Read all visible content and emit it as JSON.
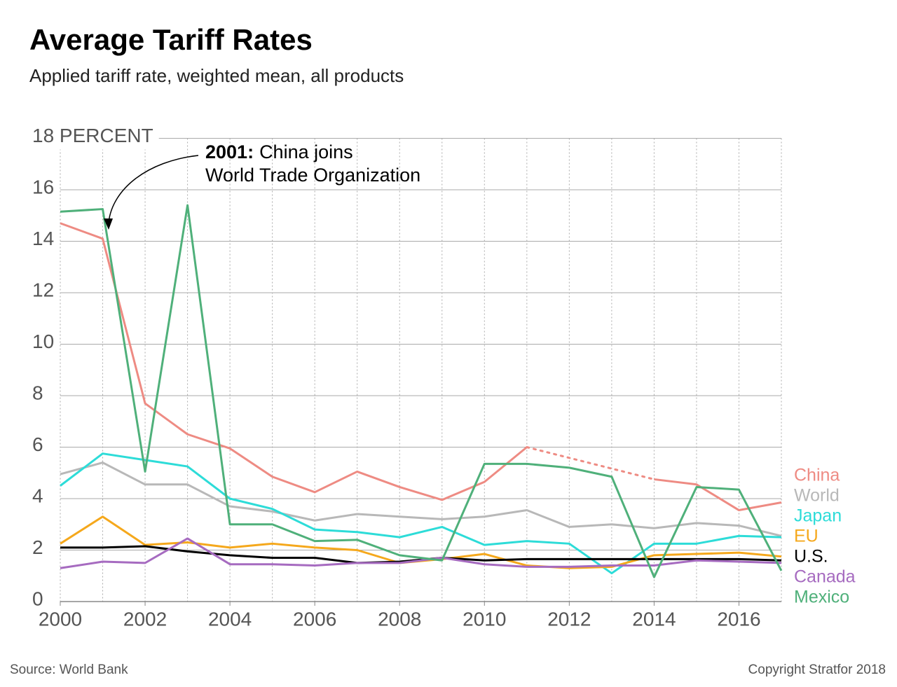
{
  "chart_data": {
    "type": "line",
    "title": "Average Tariff Rates",
    "subtitle": "Applied tariff rate, weighted mean, all products",
    "x": [
      2000,
      2001,
      2002,
      2003,
      2004,
      2005,
      2006,
      2007,
      2008,
      2009,
      2010,
      2011,
      2012,
      2013,
      2014,
      2015,
      2016,
      2017
    ],
    "xlim": [
      2000,
      2017
    ],
    "xticks": [
      2000,
      2002,
      2004,
      2006,
      2008,
      2010,
      2012,
      2014,
      2016
    ],
    "ylim": [
      0,
      18
    ],
    "yticks": [
      0,
      2,
      4,
      6,
      8,
      10,
      12,
      14,
      16,
      {
        "value": 18,
        "label": "18 PERCENT"
      }
    ],
    "grid": true,
    "legend": "right",
    "series": [
      {
        "name": "China",
        "color": "#ee8b83",
        "values": [
          14.7,
          14.1,
          7.7,
          6.5,
          5.95,
          4.85,
          4.25,
          5.05,
          4.45,
          3.95,
          4.65,
          6.0,
          null,
          null,
          4.75,
          4.55,
          3.55,
          3.85
        ]
      },
      {
        "name": "World",
        "color": "#b8b8b8",
        "values": [
          4.95,
          5.4,
          4.55,
          4.55,
          3.7,
          3.5,
          3.15,
          3.4,
          3.3,
          3.2,
          3.3,
          3.55,
          2.9,
          3.0,
          2.85,
          3.05,
          2.95,
          2.55
        ]
      },
      {
        "name": "Japan",
        "color": "#2ddcd8",
        "values": [
          4.5,
          5.75,
          5.5,
          5.25,
          4.0,
          3.6,
          2.8,
          2.7,
          2.5,
          2.9,
          2.2,
          2.35,
          2.25,
          1.1,
          2.25,
          2.25,
          2.55,
          2.5
        ]
      },
      {
        "name": "EU",
        "color": "#f5a81c",
        "values": [
          2.25,
          3.3,
          2.2,
          2.3,
          2.1,
          2.25,
          2.1,
          2.0,
          1.5,
          1.65,
          1.85,
          1.4,
          1.3,
          1.35,
          1.8,
          1.85,
          1.9,
          1.75
        ]
      },
      {
        "name": "U.S.",
        "color": "#000000",
        "values": [
          2.1,
          2.1,
          2.15,
          1.95,
          1.8,
          1.7,
          1.7,
          1.5,
          1.55,
          1.7,
          1.6,
          1.65,
          1.65,
          1.65,
          1.65,
          1.65,
          1.65,
          1.6
        ]
      },
      {
        "name": "Canada",
        "color": "#a66bc0",
        "values": [
          1.3,
          1.55,
          1.5,
          2.45,
          1.45,
          1.45,
          1.4,
          1.5,
          1.5,
          1.7,
          1.45,
          1.35,
          1.35,
          1.4,
          1.4,
          1.6,
          1.55,
          1.5
        ]
      },
      {
        "name": "Mexico",
        "color": "#4fb07a",
        "values": [
          15.15,
          15.25,
          5.05,
          15.4,
          3.0,
          3.0,
          2.35,
          2.4,
          1.8,
          1.6,
          5.35,
          5.35,
          5.2,
          4.85,
          0.95,
          4.45,
          4.35,
          1.2
        ]
      }
    ],
    "annotation": {
      "label": "2001:",
      "lines": [
        "China joins",
        "World Trade Organization"
      ]
    },
    "source": "Source: World Bank",
    "copyright": "Copyright Stratfor 2018"
  }
}
